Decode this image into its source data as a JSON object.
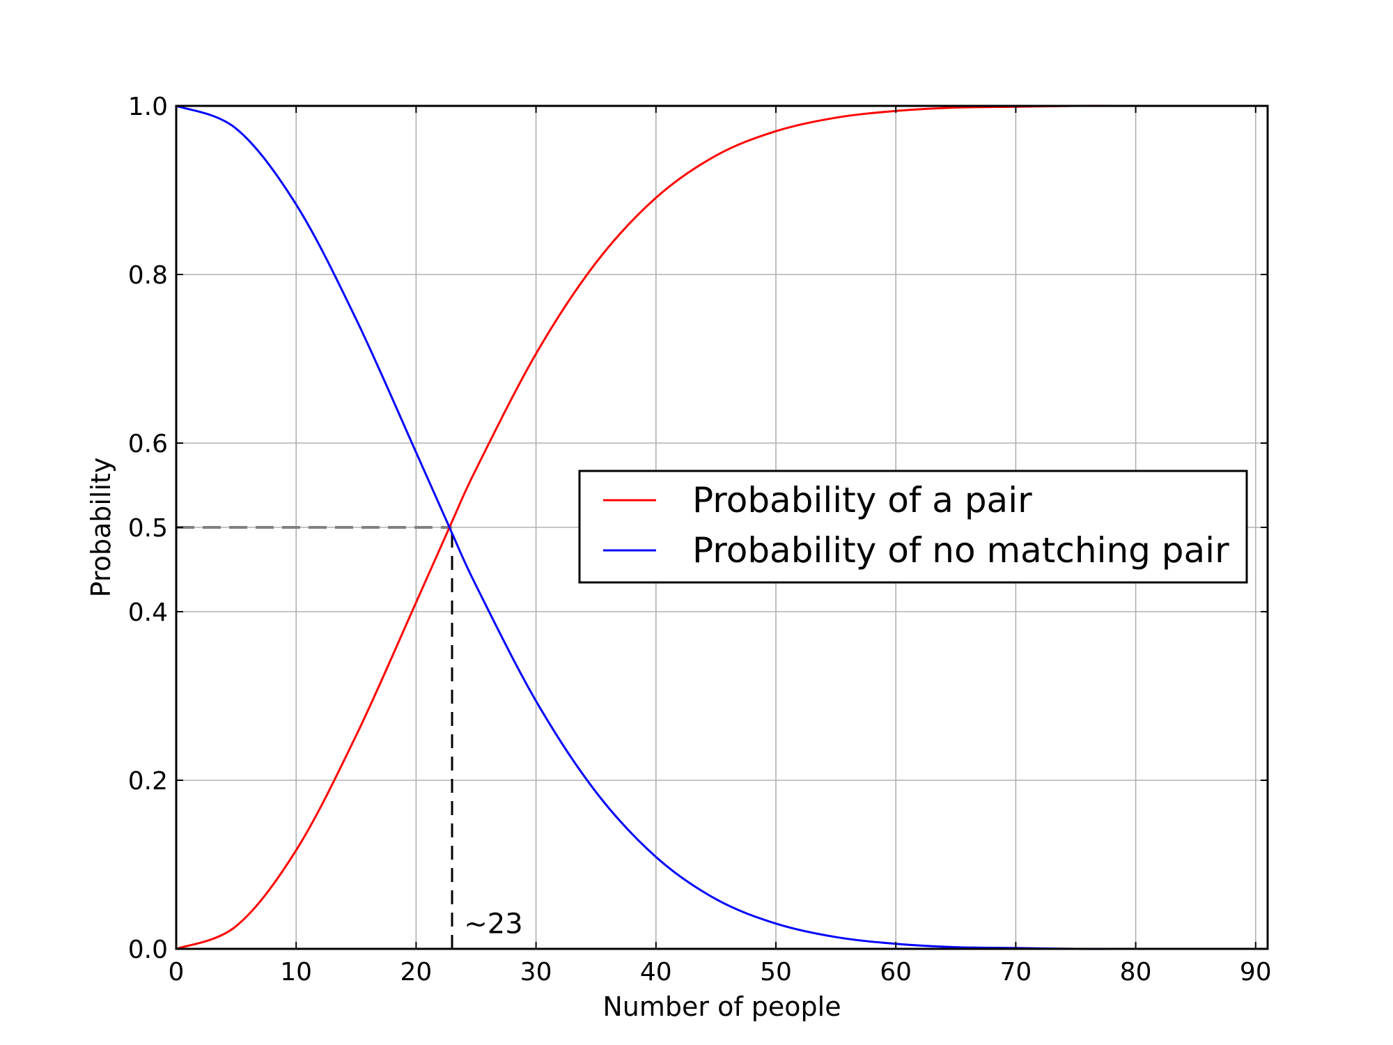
{
  "chart_data": {
    "type": "line",
    "title": "",
    "xlabel": "Number of people",
    "ylabel": "Probability",
    "xlim": [
      0,
      91
    ],
    "ylim": [
      0.0,
      1.0
    ],
    "grid": true,
    "legend_position": "center-right",
    "x_ticks": [
      0,
      10,
      20,
      30,
      40,
      50,
      60,
      70,
      80,
      90
    ],
    "x_tick_labels": [
      "0",
      "10",
      "20",
      "30",
      "40",
      "50",
      "60",
      "70",
      "80",
      "90"
    ],
    "y_ticks": [
      0.0,
      0.2,
      0.4,
      0.5,
      0.6,
      0.8,
      1.0
    ],
    "y_tick_labels": [
      "0.0",
      "0.2",
      "0.4",
      "0.5",
      "0.6",
      "0.8",
      "1.0"
    ],
    "x": [
      0,
      5,
      10,
      15,
      20,
      23,
      25,
      30,
      35,
      40,
      45,
      50,
      55,
      60,
      65,
      70,
      75,
      80,
      85,
      90
    ],
    "series": [
      {
        "name": "Probability of a pair",
        "color": "#ff0000",
        "values": [
          0.0,
          0.027,
          0.117,
          0.253,
          0.411,
          0.507,
          0.569,
          0.706,
          0.814,
          0.891,
          0.941,
          0.97,
          0.986,
          0.994,
          0.998,
          0.999,
          1.0,
          1.0,
          1.0,
          1.0
        ]
      },
      {
        "name": "Probability of no matching pair",
        "color": "#0000ff",
        "values": [
          1.0,
          0.973,
          0.883,
          0.747,
          0.589,
          0.493,
          0.431,
          0.294,
          0.186,
          0.109,
          0.059,
          0.03,
          0.014,
          0.006,
          0.002,
          0.001,
          0.0,
          0.0,
          0.0,
          0.0
        ]
      }
    ],
    "reference_lines": [
      {
        "orientation": "horizontal",
        "y": 0.5,
        "x_from": 0,
        "x_to": 23,
        "style": "dashed",
        "color": "#808080"
      },
      {
        "orientation": "vertical",
        "x": 23,
        "y_from": 0.0,
        "y_to": 0.5,
        "style": "dashed",
        "color": "#000000"
      }
    ],
    "annotations": [
      {
        "text": "~23",
        "x": 24,
        "y": 0.03
      }
    ]
  }
}
